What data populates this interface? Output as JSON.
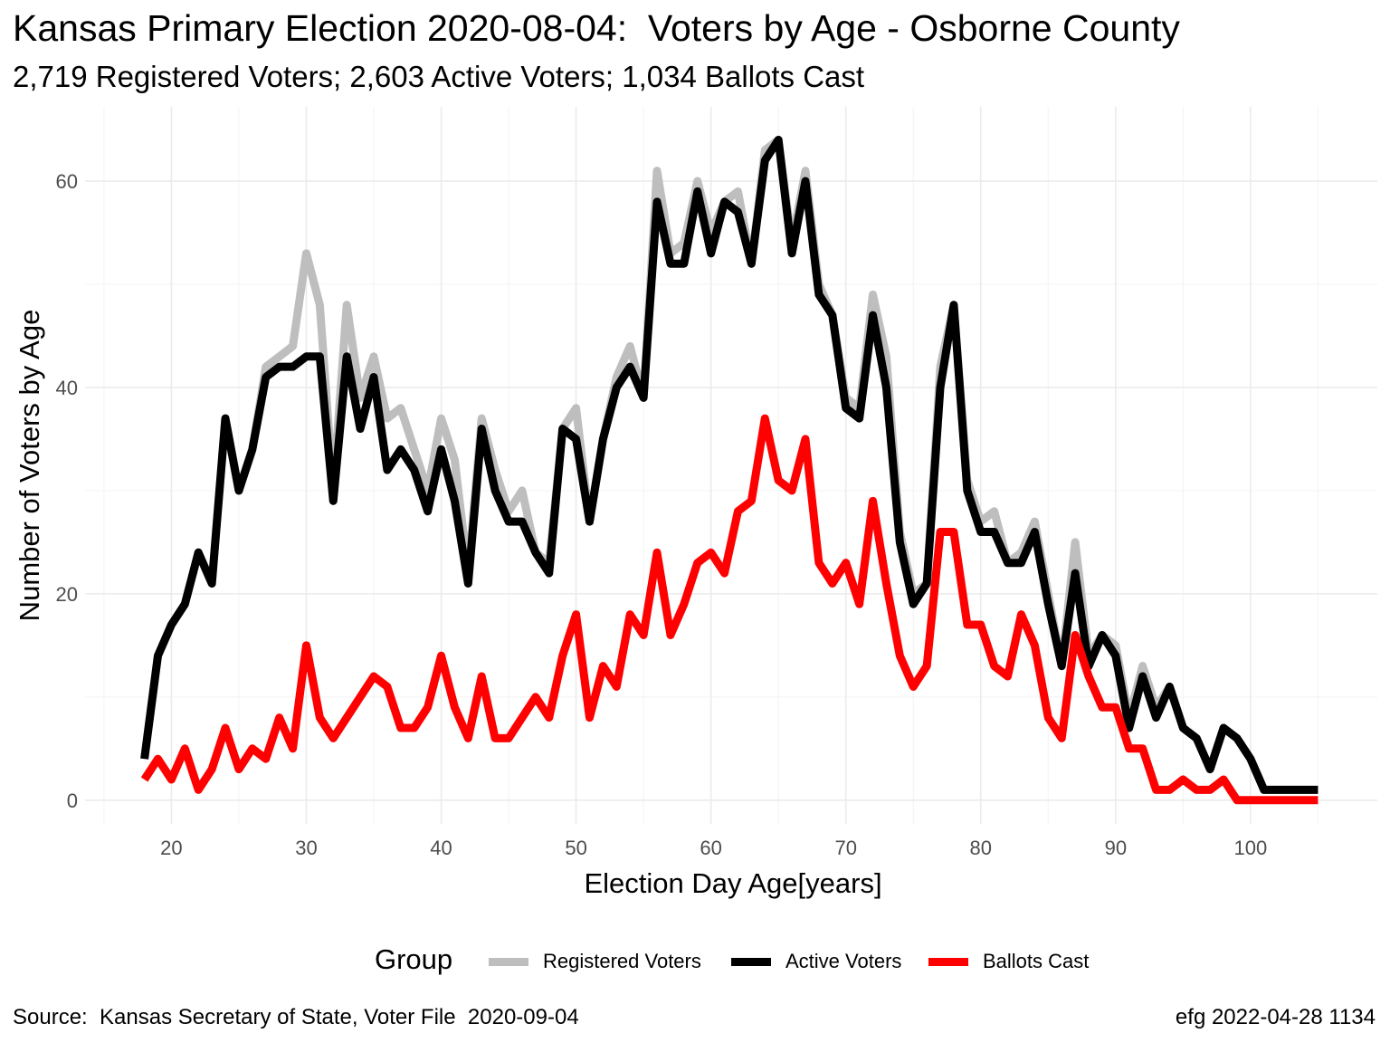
{
  "title": "Kansas Primary Election 2020-08-04:  Voters by Age - Osborne County",
  "subtitle": "2,719 Registered Voters; 2,603 Active Voters; 1,034 Ballots Cast",
  "caption_left": "Source:  Kansas Secretary of State, Voter File  2020-09-04",
  "caption_right": "efg 2022-04-28 1134",
  "legend": {
    "title": "Group",
    "items": [
      {
        "label": "Registered Voters",
        "color": "#bebebe"
      },
      {
        "label": "Active Voters",
        "color": "#000000"
      },
      {
        "label": "Ballots Cast",
        "color": "#ff0000"
      }
    ]
  },
  "chart_data": {
    "type": "line",
    "title": "Kansas Primary Election 2020-08-04:  Voters by Age - Osborne County",
    "subtitle": "2,719 Registered Voters; 2,603 Active Voters; 1,034 Ballots Cast",
    "xlabel": "Election Day Age[years]",
    "ylabel": "Number of Voters by Age",
    "xlim": [
      13.6,
      109.4
    ],
    "ylim": [
      -2.3,
      67.2
    ],
    "x_ticks": [
      20,
      30,
      40,
      50,
      60,
      70,
      80,
      90,
      100
    ],
    "y_ticks": [
      0,
      20,
      40,
      60
    ],
    "grid": true,
    "legend_position": "bottom",
    "x": [
      18,
      19,
      20,
      21,
      22,
      23,
      24,
      25,
      26,
      27,
      28,
      29,
      30,
      31,
      32,
      33,
      34,
      35,
      36,
      37,
      38,
      39,
      40,
      41,
      42,
      43,
      44,
      45,
      46,
      47,
      48,
      49,
      50,
      51,
      52,
      53,
      54,
      55,
      56,
      57,
      58,
      59,
      60,
      61,
      62,
      63,
      64,
      65,
      66,
      67,
      68,
      69,
      70,
      71,
      72,
      73,
      74,
      75,
      76,
      77,
      78,
      79,
      80,
      81,
      82,
      83,
      84,
      85,
      86,
      87,
      88,
      89,
      90,
      91,
      92,
      93,
      94,
      95,
      96,
      97,
      98,
      99,
      100,
      101,
      102,
      103,
      104,
      105
    ],
    "series": [
      {
        "name": "Registered Voters",
        "color": "#bebebe",
        "values": [
          4,
          14,
          17,
          19,
          24,
          21,
          37,
          30,
          34,
          42,
          43,
          44,
          53,
          48,
          30,
          48,
          39,
          43,
          37,
          38,
          34,
          30,
          37,
          33,
          22,
          37,
          32,
          28,
          30,
          24,
          23,
          36,
          38,
          27,
          35,
          41,
          44,
          39,
          61,
          53,
          54,
          60,
          55,
          58,
          59,
          52,
          63,
          64,
          54,
          61,
          50,
          47,
          39,
          38,
          49,
          43,
          26,
          20,
          21,
          42,
          48,
          31,
          27,
          28,
          23,
          24,
          27,
          20,
          13,
          25,
          14,
          16,
          15,
          8,
          13,
          9,
          11,
          7,
          6,
          3,
          7,
          6,
          4,
          1,
          1,
          1,
          1,
          1
        ]
      },
      {
        "name": "Active Voters",
        "color": "#000000",
        "values": [
          4,
          14,
          17,
          19,
          24,
          21,
          37,
          30,
          34,
          41,
          42,
          42,
          43,
          43,
          29,
          43,
          36,
          41,
          32,
          34,
          32,
          28,
          34,
          29,
          21,
          36,
          30,
          27,
          27,
          24,
          22,
          36,
          35,
          27,
          35,
          40,
          42,
          39,
          58,
          52,
          52,
          59,
          53,
          58,
          57,
          52,
          62,
          64,
          53,
          60,
          49,
          47,
          38,
          37,
          47,
          40,
          25,
          19,
          21,
          40,
          48,
          30,
          26,
          26,
          23,
          23,
          26,
          19,
          13,
          22,
          13,
          16,
          14,
          7,
          12,
          8,
          11,
          7,
          6,
          3,
          7,
          6,
          4,
          1,
          1,
          1,
          1,
          1
        ]
      },
      {
        "name": "Ballots Cast",
        "color": "#ff0000",
        "values": [
          2,
          4,
          2,
          5,
          1,
          3,
          7,
          3,
          5,
          4,
          8,
          5,
          15,
          8,
          6,
          8,
          10,
          12,
          11,
          7,
          7,
          9,
          14,
          9,
          6,
          12,
          6,
          6,
          8,
          10,
          8,
          14,
          18,
          8,
          13,
          11,
          18,
          16,
          24,
          16,
          19,
          23,
          24,
          22,
          28,
          29,
          37,
          31,
          30,
          35,
          23,
          21,
          23,
          19,
          29,
          21,
          14,
          11,
          13,
          26,
          26,
          17,
          17,
          13,
          12,
          18,
          15,
          8,
          6,
          16,
          12,
          9,
          9,
          5,
          5,
          1,
          1,
          2,
          1,
          1,
          2,
          0,
          0,
          0,
          0,
          0,
          0,
          0
        ]
      }
    ]
  }
}
